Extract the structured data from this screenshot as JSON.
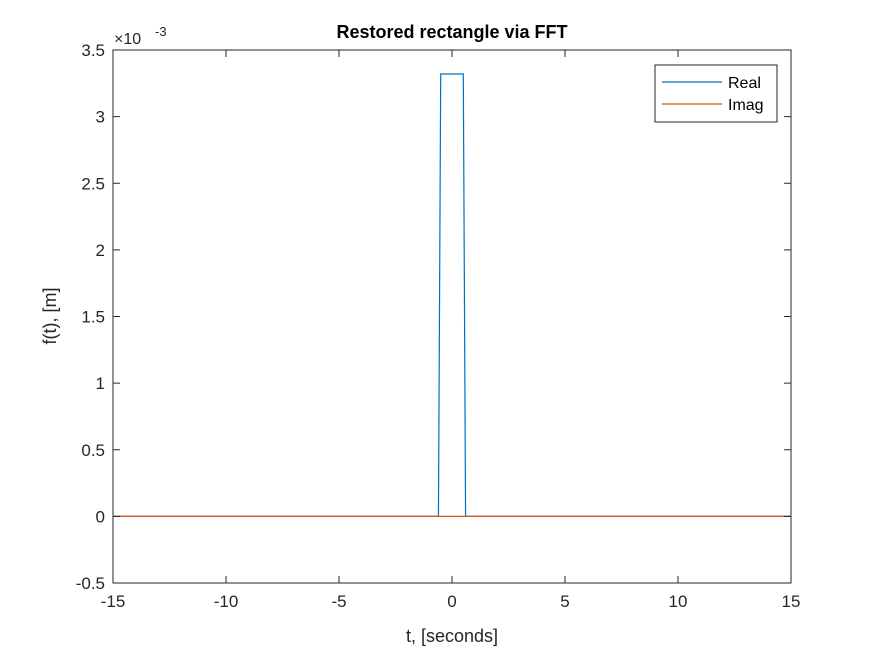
{
  "chart_data": {
    "type": "line",
    "title": "Restored rectangle via FFT",
    "xlabel": "t, [seconds]",
    "ylabel": "f(t), [m]",
    "xlim": [
      -15,
      15
    ],
    "ylim": [
      -0.5,
      3.5
    ],
    "y_exponent_label": "×10",
    "y_exponent_power": "-3",
    "xticks": [
      -15,
      -10,
      -5,
      0,
      5,
      10,
      15
    ],
    "xtick_labels": [
      "-15",
      "-10",
      "-5",
      "0",
      "5",
      "10",
      "15"
    ],
    "yticks": [
      -0.5,
      0,
      0.5,
      1,
      1.5,
      2,
      2.5,
      3,
      3.5
    ],
    "ytick_labels": [
      "-0.5",
      "0",
      "0.5",
      "1",
      "1.5",
      "2",
      "2.5",
      "3",
      "3.5"
    ],
    "grid": false,
    "legend_position": "top-right",
    "series": [
      {
        "name": "Real",
        "color": "#0072BD",
        "x": [
          -15,
          -0.6,
          -0.5,
          0.5,
          0.6,
          15
        ],
        "y": [
          0,
          0,
          3.32,
          3.32,
          0,
          0
        ]
      },
      {
        "name": "Imag",
        "color": "#D95319",
        "x": [
          -15,
          15
        ],
        "y": [
          0,
          0
        ]
      }
    ]
  }
}
